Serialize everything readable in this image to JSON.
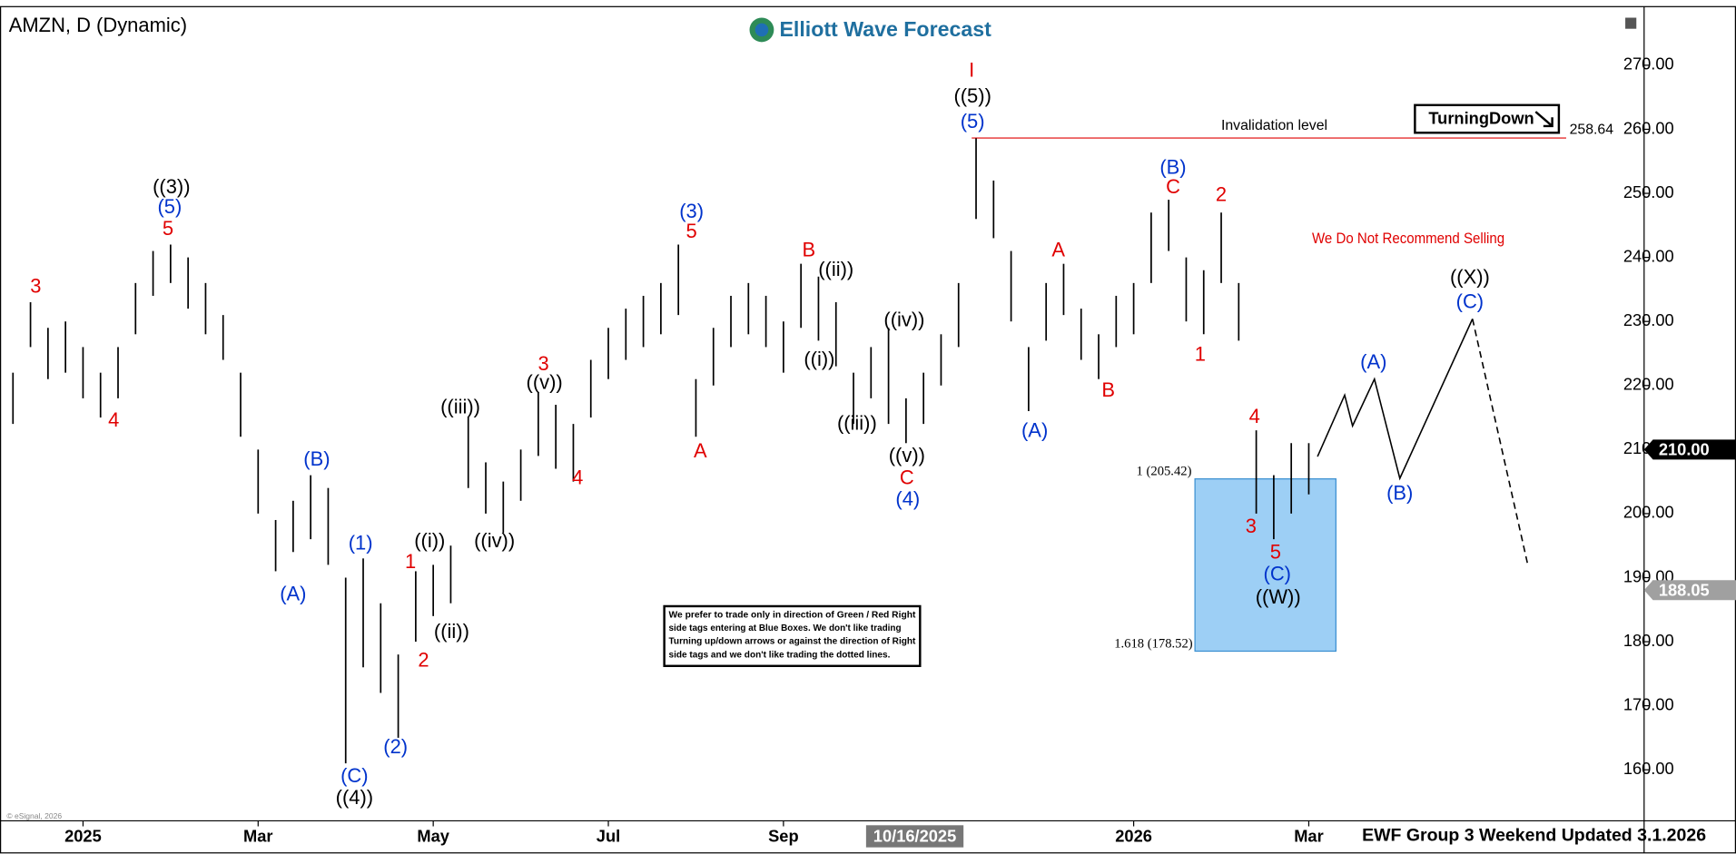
{
  "chart_data": {
    "type": "ohlc",
    "title": "AMZN, D (Dynamic)",
    "brand": "Elliott Wave Forecast",
    "footer": "EWF Group 3 Weekend Updated 3.1.2026",
    "copyright": "© eSignal, 2026",
    "badge": "TurningDown",
    "warning": "We Do Not Recommend Selling",
    "disclaimer": [
      "We prefer to trade only in direction of Green / Red Right",
      "side tags entering at Blue Boxes. We don't like trading",
      "Turning up/down arrows or against the direction of Right",
      "side tags and we don't like trading the dotted lines."
    ],
    "xlim": [
      -0.885,
      17.83
    ],
    "xticks": [
      {
        "value": 0,
        "label": "2025"
      },
      {
        "value": 2,
        "label": "Mar"
      },
      {
        "value": 4,
        "label": "May"
      },
      {
        "value": 6,
        "label": "Jul"
      },
      {
        "value": 8,
        "label": "Sep"
      },
      {
        "value": 12,
        "label": "2026"
      },
      {
        "value": 14,
        "label": "Mar"
      }
    ],
    "ylim": [
      152.38,
      278.46
    ],
    "yticks": [
      {
        "value": 160,
        "label": "160.00"
      },
      {
        "value": 170,
        "label": "170.00"
      },
      {
        "value": 180,
        "label": "180.00"
      },
      {
        "value": 190,
        "label": "190.00"
      },
      {
        "value": 200,
        "label": "200.00"
      },
      {
        "value": 210,
        "label": "210.00"
      },
      {
        "value": 220,
        "label": "220.00"
      },
      {
        "value": 230,
        "label": "230.00"
      },
      {
        "value": 240,
        "label": "240.00"
      },
      {
        "value": 250,
        "label": "250.00"
      },
      {
        "value": 260,
        "label": "260.00"
      },
      {
        "value": 270,
        "label": "270.00"
      }
    ],
    "cursor": {
      "x": 9.5,
      "label": "10/16/2025"
    },
    "bar_color": "#000000",
    "x": [
      -0.8,
      -0.6,
      -0.4,
      -0.2,
      0,
      0.2,
      0.4,
      0.6,
      0.8,
      1.0,
      1.2,
      1.4,
      1.6,
      1.8,
      2.0,
      2.2,
      2.4,
      2.6,
      2.8,
      3.0,
      3.2,
      3.4,
      3.6,
      3.8,
      4.0,
      4.2,
      4.4,
      4.6,
      4.8,
      5.0,
      5.2,
      5.4,
      5.6,
      5.8,
      6.0,
      6.2,
      6.4,
      6.6,
      6.8,
      7.0,
      7.2,
      7.4,
      7.6,
      7.8,
      8.0,
      8.2,
      8.4,
      8.6,
      8.8,
      9.0,
      9.2,
      9.4,
      9.6,
      9.8,
      10.0,
      10.2,
      10.4,
      10.6,
      10.8,
      11.0,
      11.2,
      11.4,
      11.6,
      11.8,
      12.0,
      12.2,
      12.4,
      12.6,
      12.8,
      13.0,
      13.2,
      13.4,
      13.6,
      13.8,
      14.0
    ],
    "high": [
      222,
      233,
      229,
      230,
      226,
      222,
      226,
      236,
      241,
      242,
      240,
      236,
      231,
      222,
      210,
      199,
      202,
      206,
      204,
      190,
      193,
      186,
      178,
      191,
      192,
      195,
      215,
      208,
      205,
      210,
      219,
      217,
      214,
      224,
      229,
      232,
      234,
      236,
      242,
      221,
      229,
      234,
      236,
      234,
      230,
      239,
      237,
      233,
      222,
      226,
      229,
      218,
      222,
      228,
      236,
      258.6,
      252,
      241,
      226,
      236,
      239,
      232,
      228,
      234,
      236,
      247,
      249,
      240,
      238,
      247,
      236,
      213,
      206,
      211,
      211
    ],
    "low": [
      214,
      226,
      221,
      222,
      218,
      215,
      218,
      228,
      234,
      236,
      232,
      228,
      224,
      212,
      200,
      191,
      194,
      196,
      192,
      161,
      176,
      172,
      165,
      180,
      184,
      186,
      204,
      200,
      197,
      202,
      209,
      207,
      205,
      215,
      221,
      224,
      226,
      228,
      231,
      212,
      220,
      226,
      228,
      226,
      222,
      229,
      227,
      223,
      214,
      218,
      214,
      211,
      214,
      220,
      226,
      246,
      243,
      230,
      216,
      227,
      231,
      224,
      221,
      226,
      228,
      236,
      241,
      230,
      228,
      236,
      227,
      200,
      196,
      200,
      203
    ],
    "projection": {
      "color": "#000000",
      "x": [
        14.1,
        14.41,
        14.5,
        14.75,
        15.04,
        15.87
      ],
      "values": [
        208.9,
        218.5,
        213.7,
        221,
        205.5,
        230.4
      ]
    },
    "projection_dashed": {
      "color": "#000000",
      "x": [
        15.87,
        16.5
      ],
      "values": [
        230.4,
        192.1
      ]
    },
    "invalidation": {
      "text": "Invalidation level",
      "value": 258.64,
      "x_start": 10.15,
      "x_end": 16.94,
      "color": "#e00000"
    },
    "box": {
      "top": 205.42,
      "bottom": 178.52,
      "x_start": 12.7,
      "x_end": 14.31,
      "color": "#9dcff5",
      "top_label": "1 (205.42)",
      "bottom_label": "1.618 (178.52)"
    },
    "price_tags": [
      {
        "value": 210,
        "label": "210.00",
        "color": "#000000"
      },
      {
        "value": 188.05,
        "label": "188.05",
        "color": "#a0a0a0"
      }
    ],
    "annotations": [
      {
        "text": "3",
        "color": "#e00000",
        "x": -0.54,
        "y": 235.3
      },
      {
        "text": "4",
        "color": "#e00000",
        "x": 0.35,
        "y": 214.4
      },
      {
        "text": "5",
        "color": "#e00000",
        "x": 0.97,
        "y": 244.3
      },
      {
        "text": "(5)",
        "color": "#0033cc",
        "x": 0.99,
        "y": 247.7
      },
      {
        "text": "((3))",
        "color": "#000000",
        "x": 1.01,
        "y": 250.8
      },
      {
        "text": "(B)",
        "color": "#0033cc",
        "x": 2.67,
        "y": 208.3
      },
      {
        "text": "(A)",
        "color": "#0033cc",
        "x": 2.4,
        "y": 187.3
      },
      {
        "text": "(1)",
        "color": "#0033cc",
        "x": 3.17,
        "y": 195.2
      },
      {
        "text": "(C)",
        "color": "#0033cc",
        "x": 3.1,
        "y": 158.9
      },
      {
        "text": "((4))",
        "color": "#000000",
        "x": 3.1,
        "y": 155.5
      },
      {
        "text": "(2)",
        "color": "#0033cc",
        "x": 3.57,
        "y": 163.4
      },
      {
        "text": "1",
        "color": "#e00000",
        "x": 3.74,
        "y": 192.3
      },
      {
        "text": "2",
        "color": "#e00000",
        "x": 3.89,
        "y": 176.9
      },
      {
        "text": "((i))",
        "color": "#000000",
        "x": 3.96,
        "y": 195.6
      },
      {
        "text": "((ii))",
        "color": "#000000",
        "x": 4.21,
        "y": 181.4
      },
      {
        "text": "((iii))",
        "color": "#000000",
        "x": 4.31,
        "y": 216.5
      },
      {
        "text": "((iv))",
        "color": "#000000",
        "x": 4.7,
        "y": 195.6
      },
      {
        "text": "3",
        "color": "#e00000",
        "x": 5.26,
        "y": 223.2
      },
      {
        "text": "((v))",
        "color": "#000000",
        "x": 5.27,
        "y": 220.3
      },
      {
        "text": "4",
        "color": "#e00000",
        "x": 5.65,
        "y": 205.4
      },
      {
        "text": "(3)",
        "color": "#0033cc",
        "x": 6.95,
        "y": 247
      },
      {
        "text": "5",
        "color": "#e00000",
        "x": 6.95,
        "y": 243.9
      },
      {
        "text": "A",
        "color": "#e00000",
        "x": 7.05,
        "y": 209.6
      },
      {
        "text": "B",
        "color": "#e00000",
        "x": 8.29,
        "y": 241
      },
      {
        "text": "((ii))",
        "color": "#000000",
        "x": 8.6,
        "y": 237.9
      },
      {
        "text": "((i))",
        "color": "#000000",
        "x": 8.41,
        "y": 223.9
      },
      {
        "text": "((iii))",
        "color": "#000000",
        "x": 8.84,
        "y": 213.9
      },
      {
        "text": "((iv))",
        "color": "#000000",
        "x": 9.38,
        "y": 230.1
      },
      {
        "text": "((v))",
        "color": "#000000",
        "x": 9.41,
        "y": 208.9
      },
      {
        "text": "C",
        "color": "#e00000",
        "x": 9.41,
        "y": 205.4
      },
      {
        "text": "(4)",
        "color": "#0033cc",
        "x": 9.42,
        "y": 202.1
      },
      {
        "text": "I",
        "color": "#e00000",
        "x": 10.15,
        "y": 269
      },
      {
        "text": "((5))",
        "color": "#000000",
        "x": 10.16,
        "y": 265
      },
      {
        "text": "(5)",
        "color": "#0033cc",
        "x": 10.16,
        "y": 261
      },
      {
        "text": "(A)",
        "color": "#0033cc",
        "x": 10.87,
        "y": 212.8
      },
      {
        "text": "A",
        "color": "#e00000",
        "x": 11.14,
        "y": 241
      },
      {
        "text": "B",
        "color": "#e00000",
        "x": 11.71,
        "y": 219.1
      },
      {
        "text": "(B)",
        "color": "#0033cc",
        "x": 12.45,
        "y": 253.9
      },
      {
        "text": "C",
        "color": "#e00000",
        "x": 12.45,
        "y": 250.8
      },
      {
        "text": "2",
        "color": "#e00000",
        "x": 13.0,
        "y": 249.6
      },
      {
        "text": "1",
        "color": "#e00000",
        "x": 12.76,
        "y": 224.7
      },
      {
        "text": "4",
        "color": "#e00000",
        "x": 13.38,
        "y": 215
      },
      {
        "text": "3",
        "color": "#e00000",
        "x": 13.34,
        "y": 197.8
      },
      {
        "text": "5",
        "color": "#e00000",
        "x": 13.62,
        "y": 193.8
      },
      {
        "text": "(C)",
        "color": "#0033cc",
        "x": 13.64,
        "y": 190.4
      },
      {
        "text": "((W))",
        "color": "#000000",
        "x": 13.65,
        "y": 186.8
      },
      {
        "text": "(A)",
        "color": "#0033cc",
        "x": 14.74,
        "y": 223.5
      },
      {
        "text": "(B)",
        "color": "#0033cc",
        "x": 15.04,
        "y": 203
      },
      {
        "text": "((X))",
        "color": "#000000",
        "x": 15.84,
        "y": 236.7
      },
      {
        "text": "(C)",
        "color": "#0033cc",
        "x": 15.84,
        "y": 232.9
      }
    ]
  }
}
